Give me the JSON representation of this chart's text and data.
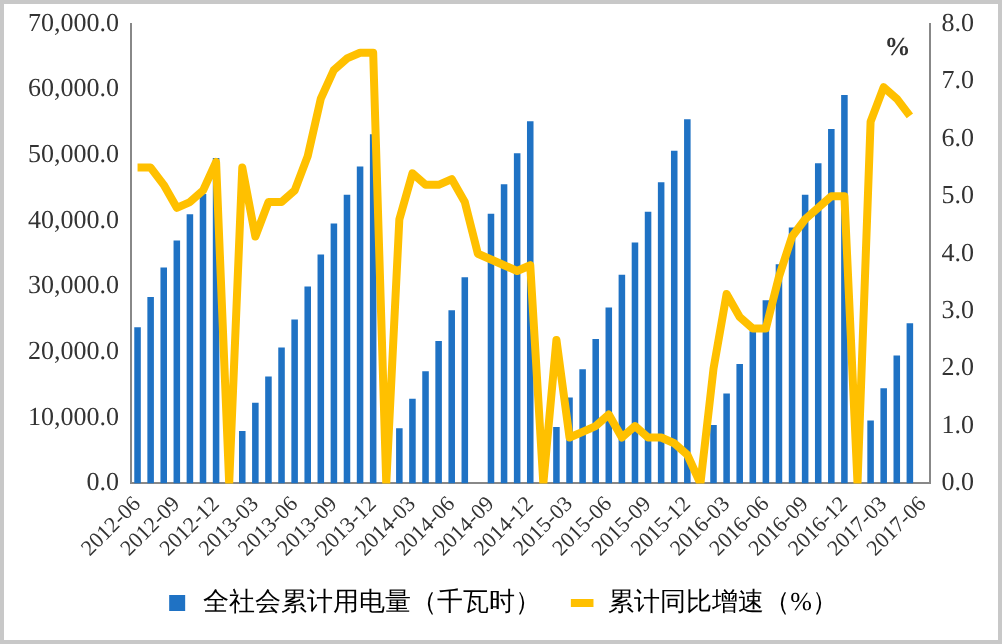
{
  "chart_data": {
    "type": "bar",
    "categories": [
      "2012-06",
      null,
      null,
      "2012-09",
      null,
      null,
      "2012-12",
      null,
      null,
      "2013-03",
      null,
      null,
      "2013-06",
      null,
      null,
      "2013-09",
      null,
      null,
      "2013-12",
      null,
      null,
      "2014-03",
      null,
      null,
      "2014-06",
      null,
      null,
      "2014-09",
      null,
      null,
      "2014-12",
      null,
      null,
      "2015-03",
      null,
      null,
      "2015-06",
      null,
      null,
      "2015-09",
      null,
      null,
      "2015-12",
      null,
      null,
      "2016-03",
      null,
      null,
      "2016-06",
      null,
      null,
      "2016-09",
      null,
      null,
      "2016-12",
      null,
      null,
      "2017-03",
      null,
      null,
      "2017-06"
    ],
    "series": [
      {
        "name": "全社会累计用电量（千瓦时）",
        "color": "#1f72c4",
        "values": [
          23800,
          28400,
          32900,
          37000,
          41000,
          44100,
          49600,
          null,
          8000,
          12300,
          16300,
          20700,
          25000,
          30000,
          34900,
          39600,
          44000,
          48300,
          53200,
          null,
          8400,
          12900,
          17100,
          21700,
          26400,
          31400,
          null,
          41100,
          45600,
          50300,
          55200,
          null,
          8600,
          13100,
          17400,
          22000,
          26800,
          31800,
          36700,
          41400,
          45900,
          50700,
          55500,
          null,
          8900,
          13700,
          18200,
          23200,
          27900,
          33400,
          39000,
          44000,
          48800,
          54000,
          59200,
          null,
          9600,
          14500,
          19500,
          24400,
          null
        ]
      },
      {
        "name": "累计同比增速（%）",
        "type": "line",
        "axis": "y2",
        "color": "#ffc000",
        "values": [
          5.5,
          5.5,
          5.2,
          4.8,
          4.9,
          5.1,
          5.6,
          0,
          5.5,
          4.3,
          4.9,
          4.9,
          5.1,
          5.7,
          6.7,
          7.2,
          7.4,
          7.5,
          7.5,
          0,
          4.6,
          5.4,
          5.2,
          5.2,
          5.3,
          4.9,
          4.0,
          3.9,
          3.8,
          3.7,
          3.8,
          0,
          2.5,
          0.8,
          0.9,
          1.0,
          1.2,
          0.8,
          1.0,
          0.8,
          0.8,
          0.7,
          0.5,
          0,
          2.0,
          3.3,
          2.9,
          2.7,
          2.7,
          3.6,
          4.3,
          4.6,
          4.8,
          5.0,
          5.0,
          0,
          6.3,
          6.9,
          6.7,
          6.4,
          null
        ]
      }
    ],
    "y2label": "%",
    "ylim": [
      0,
      70000
    ],
    "yticks": [
      {
        "value": 0,
        "label": "0.0"
      },
      {
        "value": 10000,
        "label": "10,000.0"
      },
      {
        "value": 20000,
        "label": "20,000.0"
      },
      {
        "value": 30000,
        "label": "30,000.0"
      },
      {
        "value": 40000,
        "label": "40,000.0"
      },
      {
        "value": 50000,
        "label": "50,000.0"
      },
      {
        "value": 60000,
        "label": "60,000.0"
      },
      {
        "value": 70000,
        "label": "70,000.0"
      }
    ],
    "y2lim": [
      0,
      8
    ],
    "y2ticks": [
      {
        "value": 0,
        "label": "0.0"
      },
      {
        "value": 1,
        "label": "1.0"
      },
      {
        "value": 2,
        "label": "2.0"
      },
      {
        "value": 3,
        "label": "3.0"
      },
      {
        "value": 4,
        "label": "4.0"
      },
      {
        "value": 5,
        "label": "5.0"
      },
      {
        "value": 6,
        "label": "6.0"
      },
      {
        "value": 7,
        "label": "7.0"
      },
      {
        "value": 8,
        "label": "8.0"
      }
    ],
    "grid": false,
    "legend": "bottom",
    "marker": "none",
    "line_style": "solid"
  }
}
